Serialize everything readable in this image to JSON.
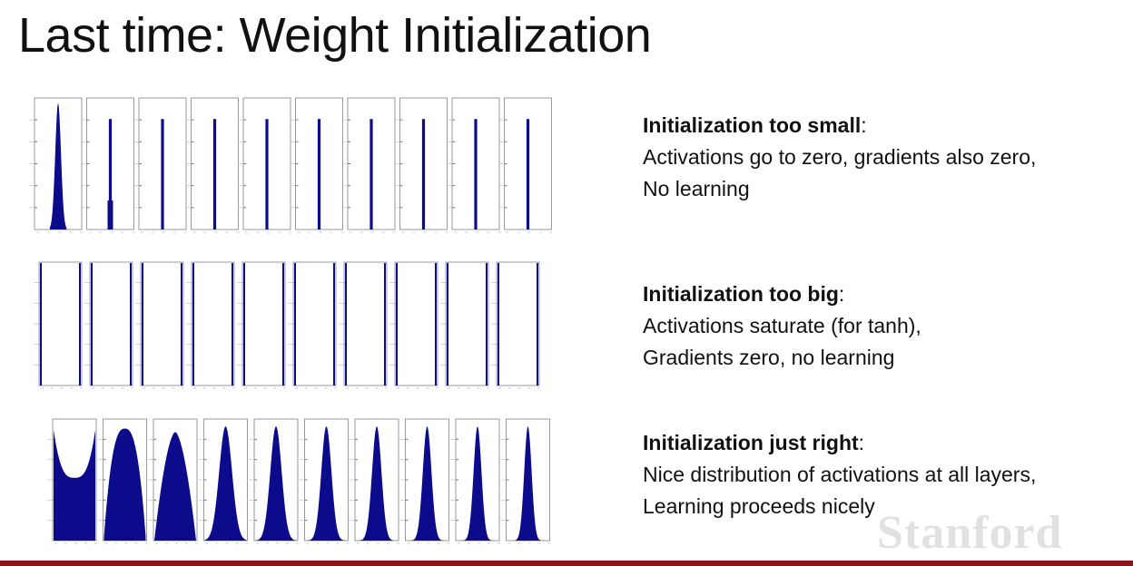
{
  "slide": {
    "title": "Last time: Weight Initialization",
    "watermark": "Stanford"
  },
  "panels": [
    {
      "heading": "Initialization too small",
      "lines": [
        "Activations go to zero, gradients also zero,",
        "No learning"
      ]
    },
    {
      "heading": "Initialization too big",
      "lines": [
        "Activations saturate (for tanh),",
        "Gradients zero, no learning"
      ]
    },
    {
      "heading": "Initialization just right",
      "lines": [
        "Nice distribution of activations at all layers,",
        "Learning proceeds nicely"
      ]
    }
  ],
  "colors": {
    "bar": "#0b0b8c",
    "frame": "#9a9a9a",
    "accent": "#8c1515"
  },
  "chart_data": [
    {
      "type": "bar",
      "layers": 10,
      "distribution": "collapsed-to-zero",
      "xlim": [
        -1,
        1
      ],
      "spread": [
        0.11,
        0.01,
        0.005,
        0.005,
        0.005,
        0.005,
        0.005,
        0.005,
        0.005,
        0.005
      ]
    },
    {
      "type": "bar",
      "layers": 10,
      "distribution": "saturated-at-plus-minus-one",
      "xlim": [
        -1,
        1
      ]
    },
    {
      "type": "bar",
      "layers": 10,
      "distribution": "well-spread",
      "xlim": [
        -1,
        1
      ],
      "spread": [
        1.0,
        0.78,
        0.62,
        0.52,
        0.46,
        0.41,
        0.38,
        0.35,
        0.32,
        0.3
      ]
    }
  ]
}
